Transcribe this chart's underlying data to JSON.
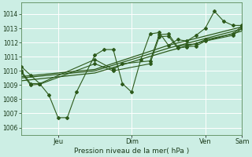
{
  "background_color": "#cceee4",
  "grid_color": "#ffffff",
  "line_color": "#2d5a1b",
  "xlabel": "Pression niveau de la mer( hPa )",
  "ylim": [
    1005.5,
    1014.8
  ],
  "yticks": [
    1006,
    1007,
    1008,
    1009,
    1010,
    1011,
    1012,
    1013,
    1014
  ],
  "xlim": [
    0,
    144
  ],
  "xtick_positions": [
    24,
    72,
    120,
    144
  ],
  "xtick_labels": [
    "Jeu",
    "Dim",
    "Ven",
    "Sam"
  ],
  "series_main": {
    "x": [
      0,
      6,
      12,
      18,
      24,
      30,
      36,
      48,
      54,
      60,
      66,
      72,
      78,
      84,
      90,
      96,
      102,
      108,
      114,
      120,
      126,
      132,
      138,
      144
    ],
    "y": [
      1010.3,
      1009.7,
      1009.1,
      1008.3,
      1006.7,
      1006.7,
      1008.5,
      1011.1,
      1011.5,
      1011.5,
      1009.1,
      1008.5,
      1010.8,
      1012.6,
      1012.7,
      1011.8,
      1012.2,
      1012.1,
      1012.5,
      1013.0,
      1014.2,
      1013.5,
      1013.2,
      1013.2
    ]
  },
  "series_2": {
    "x": [
      0,
      6,
      12,
      48,
      60,
      66,
      84,
      90,
      96,
      102,
      108,
      114,
      120,
      138,
      144
    ],
    "y": [
      1010.0,
      1009.1,
      1009.1,
      1010.8,
      1010.1,
      1010.5,
      1010.7,
      1012.55,
      1012.6,
      1011.7,
      1011.85,
      1011.9,
      1012.2,
      1012.6,
      1013.15
    ]
  },
  "series_3": {
    "x": [
      0,
      6,
      12,
      48,
      60,
      84,
      90,
      96,
      102,
      108,
      114,
      120,
      138,
      144
    ],
    "y": [
      1009.9,
      1009.0,
      1009.05,
      1010.5,
      1010.0,
      1010.5,
      1012.4,
      1012.45,
      1011.6,
      1011.7,
      1011.75,
      1012.1,
      1012.5,
      1013.0
    ]
  },
  "trend": {
    "x": [
      0,
      48,
      96,
      144
    ],
    "y": [
      1009.6,
      1010.1,
      1011.8,
      1013.1
    ]
  },
  "trend2": {
    "x": [
      0,
      48,
      96,
      144
    ],
    "y": [
      1009.5,
      1010.0,
      1011.6,
      1012.95
    ]
  },
  "trend3": {
    "x": [
      0,
      48,
      96,
      144
    ],
    "y": [
      1009.3,
      1009.85,
      1011.4,
      1012.8
    ]
  }
}
